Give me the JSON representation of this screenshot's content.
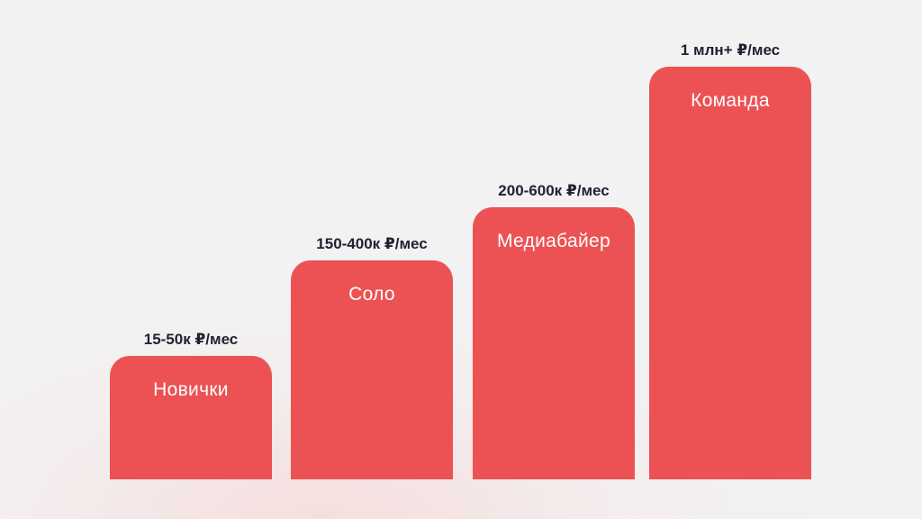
{
  "colors": {
    "bar": "#ec5254",
    "bar_label": "#ffffff",
    "value_label": "#1f2230",
    "background": "#f2f2f2"
  },
  "chart_data": {
    "type": "bar",
    "categories": [
      "Новички",
      "Соло",
      "Медиабайер",
      "Команда"
    ],
    "value_labels": [
      "15-50к ₽/мес",
      "150-400к ₽/мес",
      "200-600к ₽/мес",
      "1 млн+ ₽/мес"
    ],
    "relative_heights": [
      0.3,
      0.53,
      0.66,
      1.0
    ],
    "title": "",
    "xlabel": "",
    "ylabel": "",
    "grid": false,
    "legend": "none"
  }
}
